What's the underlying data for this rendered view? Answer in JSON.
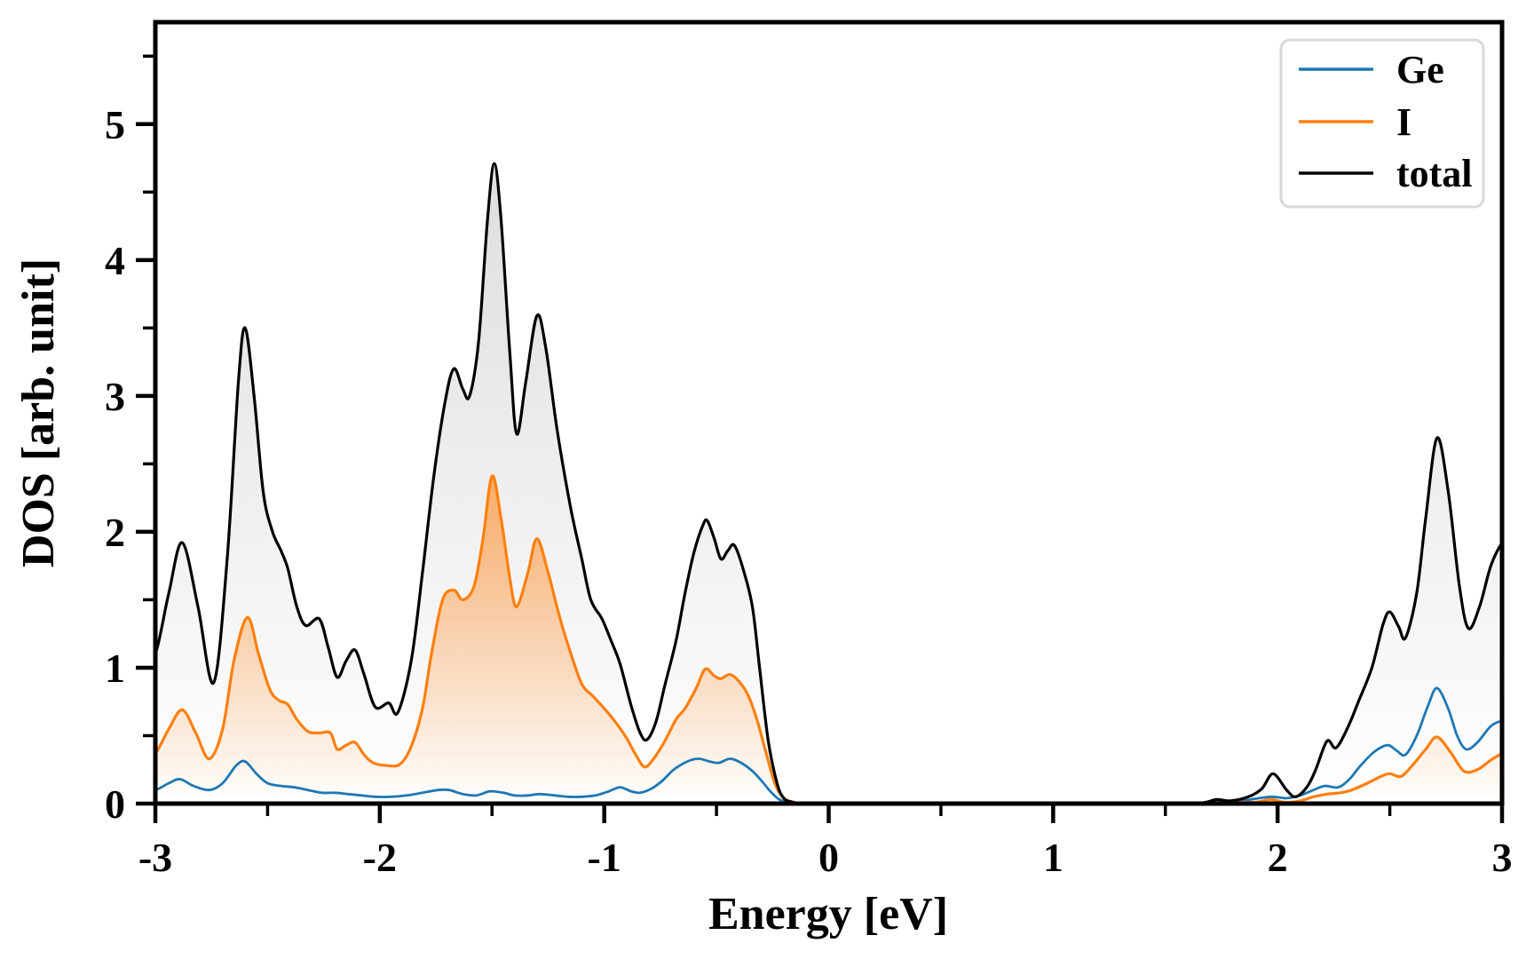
{
  "chart_data": {
    "type": "area",
    "title": "",
    "xlabel": "Energy [eV]",
    "ylabel": "DOS [arb. unit]",
    "xlim": [
      -3,
      3
    ],
    "ylim": [
      0,
      5.75
    ],
    "x_major_ticks": [
      -3,
      -2,
      -1,
      0,
      1,
      2,
      3
    ],
    "x_minor_ticks": [
      -2.5,
      -1.5,
      -0.5,
      0.5,
      1.5,
      2.5
    ],
    "y_major_ticks": [
      0,
      1,
      2,
      3,
      4,
      5
    ],
    "y_minor_ticks": [
      0.5,
      1.5,
      2.5,
      3.5,
      4.5,
      5.5
    ],
    "grid": false,
    "legend_position": "upper right",
    "colors": {
      "axis": "#000000",
      "legend_border": "#d9d9d9",
      "background": "#ffffff"
    },
    "series": [
      {
        "name": "Ge",
        "color": "#1f77b4",
        "line_width": 2.8,
        "fill": null,
        "points": [
          [
            -3.06,
            0.09
          ],
          [
            -3.0,
            0.1
          ],
          [
            -2.94,
            0.15
          ],
          [
            -2.89,
            0.18
          ],
          [
            -2.83,
            0.13
          ],
          [
            -2.76,
            0.1
          ],
          [
            -2.7,
            0.15
          ],
          [
            -2.64,
            0.28
          ],
          [
            -2.6,
            0.31
          ],
          [
            -2.55,
            0.22
          ],
          [
            -2.5,
            0.15
          ],
          [
            -2.44,
            0.13
          ],
          [
            -2.38,
            0.12
          ],
          [
            -2.32,
            0.1
          ],
          [
            -2.26,
            0.08
          ],
          [
            -2.2,
            0.08
          ],
          [
            -2.14,
            0.07
          ],
          [
            -2.08,
            0.06
          ],
          [
            -2.02,
            0.05
          ],
          [
            -1.95,
            0.05
          ],
          [
            -1.88,
            0.06
          ],
          [
            -1.81,
            0.08
          ],
          [
            -1.74,
            0.1
          ],
          [
            -1.69,
            0.1
          ],
          [
            -1.63,
            0.07
          ],
          [
            -1.57,
            0.06
          ],
          [
            -1.51,
            0.09
          ],
          [
            -1.45,
            0.08
          ],
          [
            -1.4,
            0.06
          ],
          [
            -1.34,
            0.06
          ],
          [
            -1.29,
            0.07
          ],
          [
            -1.22,
            0.06
          ],
          [
            -1.16,
            0.05
          ],
          [
            -1.1,
            0.05
          ],
          [
            -1.04,
            0.06
          ],
          [
            -0.98,
            0.09
          ],
          [
            -0.93,
            0.12
          ],
          [
            -0.88,
            0.09
          ],
          [
            -0.84,
            0.08
          ],
          [
            -0.79,
            0.11
          ],
          [
            -0.74,
            0.17
          ],
          [
            -0.69,
            0.25
          ],
          [
            -0.63,
            0.31
          ],
          [
            -0.58,
            0.33
          ],
          [
            -0.53,
            0.31
          ],
          [
            -0.49,
            0.3
          ],
          [
            -0.44,
            0.33
          ],
          [
            -0.39,
            0.3
          ],
          [
            -0.34,
            0.24
          ],
          [
            -0.3,
            0.17
          ],
          [
            -0.26,
            0.09
          ],
          [
            -0.22,
            0.03
          ],
          [
            -0.18,
            0.01
          ],
          [
            -0.12,
            0
          ],
          [
            0.3,
            0
          ],
          [
            0.9,
            0
          ],
          [
            1.5,
            0
          ],
          [
            1.62,
            0
          ],
          [
            1.7,
            0.01
          ],
          [
            1.8,
            0.01
          ],
          [
            1.88,
            0.03
          ],
          [
            1.97,
            0.05
          ],
          [
            2.04,
            0.04
          ],
          [
            2.1,
            0.06
          ],
          [
            2.16,
            0.1
          ],
          [
            2.21,
            0.13
          ],
          [
            2.27,
            0.12
          ],
          [
            2.32,
            0.18
          ],
          [
            2.37,
            0.28
          ],
          [
            2.43,
            0.38
          ],
          [
            2.49,
            0.43
          ],
          [
            2.53,
            0.39
          ],
          [
            2.57,
            0.36
          ],
          [
            2.62,
            0.5
          ],
          [
            2.67,
            0.72
          ],
          [
            2.71,
            0.85
          ],
          [
            2.76,
            0.7
          ],
          [
            2.8,
            0.5
          ],
          [
            2.84,
            0.4
          ],
          [
            2.89,
            0.45
          ],
          [
            2.95,
            0.57
          ],
          [
            3.0,
            0.61
          ],
          [
            3.06,
            0.64
          ]
        ]
      },
      {
        "name": "I",
        "color": "#ff7f0e",
        "line_width": 3.2,
        "fill": {
          "type": "vertical-gradient",
          "max_alpha": 0.6
        },
        "points": [
          [
            -3.06,
            0.32
          ],
          [
            -3.0,
            0.37
          ],
          [
            -2.94,
            0.55
          ],
          [
            -2.88,
            0.69
          ],
          [
            -2.82,
            0.52
          ],
          [
            -2.76,
            0.33
          ],
          [
            -2.7,
            0.55
          ],
          [
            -2.65,
            1.05
          ],
          [
            -2.59,
            1.37
          ],
          [
            -2.54,
            1.1
          ],
          [
            -2.49,
            0.84
          ],
          [
            -2.45,
            0.76
          ],
          [
            -2.41,
            0.73
          ],
          [
            -2.37,
            0.62
          ],
          [
            -2.32,
            0.53
          ],
          [
            -2.27,
            0.52
          ],
          [
            -2.22,
            0.52
          ],
          [
            -2.19,
            0.4
          ],
          [
            -2.15,
            0.43
          ],
          [
            -2.11,
            0.45
          ],
          [
            -2.07,
            0.36
          ],
          [
            -2.03,
            0.3
          ],
          [
            -1.97,
            0.28
          ],
          [
            -1.91,
            0.29
          ],
          [
            -1.86,
            0.42
          ],
          [
            -1.81,
            0.7
          ],
          [
            -1.77,
            1.1
          ],
          [
            -1.72,
            1.5
          ],
          [
            -1.67,
            1.57
          ],
          [
            -1.63,
            1.5
          ],
          [
            -1.58,
            1.6
          ],
          [
            -1.54,
            1.95
          ],
          [
            -1.5,
            2.41
          ],
          [
            -1.46,
            2.1
          ],
          [
            -1.42,
            1.65
          ],
          [
            -1.39,
            1.45
          ],
          [
            -1.34,
            1.7
          ],
          [
            -1.3,
            1.95
          ],
          [
            -1.25,
            1.7
          ],
          [
            -1.2,
            1.38
          ],
          [
            -1.15,
            1.11
          ],
          [
            -1.1,
            0.88
          ],
          [
            -1.05,
            0.79
          ],
          [
            -1.0,
            0.7
          ],
          [
            -0.95,
            0.6
          ],
          [
            -0.9,
            0.48
          ],
          [
            -0.86,
            0.36
          ],
          [
            -0.82,
            0.27
          ],
          [
            -0.78,
            0.33
          ],
          [
            -0.73,
            0.46
          ],
          [
            -0.68,
            0.62
          ],
          [
            -0.64,
            0.7
          ],
          [
            -0.59,
            0.85
          ],
          [
            -0.55,
            0.99
          ],
          [
            -0.51,
            0.94
          ],
          [
            -0.48,
            0.92
          ],
          [
            -0.44,
            0.95
          ],
          [
            -0.4,
            0.9
          ],
          [
            -0.36,
            0.8
          ],
          [
            -0.32,
            0.62
          ],
          [
            -0.28,
            0.38
          ],
          [
            -0.24,
            0.15
          ],
          [
            -0.2,
            0.04
          ],
          [
            -0.15,
            0.01
          ],
          [
            -0.09,
            0
          ],
          [
            0.3,
            0
          ],
          [
            0.9,
            0
          ],
          [
            1.5,
            0
          ],
          [
            1.72,
            0
          ],
          [
            1.8,
            0.01
          ],
          [
            1.9,
            0.01
          ],
          [
            1.97,
            0.03
          ],
          [
            2.03,
            0.01
          ],
          [
            2.1,
            0.02
          ],
          [
            2.16,
            0.05
          ],
          [
            2.22,
            0.07
          ],
          [
            2.28,
            0.08
          ],
          [
            2.33,
            0.1
          ],
          [
            2.4,
            0.15
          ],
          [
            2.46,
            0.2
          ],
          [
            2.5,
            0.22
          ],
          [
            2.55,
            0.2
          ],
          [
            2.6,
            0.28
          ],
          [
            2.66,
            0.4
          ],
          [
            2.71,
            0.49
          ],
          [
            2.77,
            0.38
          ],
          [
            2.83,
            0.24
          ],
          [
            2.89,
            0.25
          ],
          [
            2.95,
            0.32
          ],
          [
            3.0,
            0.37
          ],
          [
            3.06,
            0.41
          ]
        ]
      },
      {
        "name": "total",
        "color": "#000000",
        "line_width": 3.2,
        "fill": {
          "type": "vertical-gradient",
          "max_alpha": 0.13
        },
        "points": [
          [
            -3.06,
            1.0
          ],
          [
            -3.0,
            1.1
          ],
          [
            -2.94,
            1.55
          ],
          [
            -2.88,
            1.92
          ],
          [
            -2.81,
            1.45
          ],
          [
            -2.74,
            0.89
          ],
          [
            -2.68,
            1.8
          ],
          [
            -2.63,
            3.1
          ],
          [
            -2.6,
            3.5
          ],
          [
            -2.56,
            3.0
          ],
          [
            -2.52,
            2.3
          ],
          [
            -2.48,
            2.01
          ],
          [
            -2.44,
            1.86
          ],
          [
            -2.41,
            1.73
          ],
          [
            -2.37,
            1.45
          ],
          [
            -2.33,
            1.31
          ],
          [
            -2.27,
            1.36
          ],
          [
            -2.23,
            1.15
          ],
          [
            -2.19,
            0.93
          ],
          [
            -2.15,
            1.05
          ],
          [
            -2.11,
            1.13
          ],
          [
            -2.07,
            0.95
          ],
          [
            -2.02,
            0.71
          ],
          [
            -1.96,
            0.74
          ],
          [
            -1.92,
            0.67
          ],
          [
            -1.86,
            1.05
          ],
          [
            -1.81,
            1.7
          ],
          [
            -1.76,
            2.4
          ],
          [
            -1.71,
            2.95
          ],
          [
            -1.67,
            3.2
          ],
          [
            -1.63,
            3.05
          ],
          [
            -1.6,
            3.0
          ],
          [
            -1.56,
            3.4
          ],
          [
            -1.52,
            4.3
          ],
          [
            -1.49,
            4.71
          ],
          [
            -1.46,
            4.3
          ],
          [
            -1.42,
            3.3
          ],
          [
            -1.39,
            2.72
          ],
          [
            -1.35,
            3.1
          ],
          [
            -1.3,
            3.59
          ],
          [
            -1.26,
            3.35
          ],
          [
            -1.21,
            2.75
          ],
          [
            -1.15,
            2.18
          ],
          [
            -1.1,
            1.8
          ],
          [
            -1.06,
            1.5
          ],
          [
            -1.01,
            1.36
          ],
          [
            -0.97,
            1.2
          ],
          [
            -0.93,
            1.03
          ],
          [
            -0.88,
            0.72
          ],
          [
            -0.84,
            0.52
          ],
          [
            -0.81,
            0.47
          ],
          [
            -0.77,
            0.6
          ],
          [
            -0.73,
            0.87
          ],
          [
            -0.68,
            1.2
          ],
          [
            -0.64,
            1.55
          ],
          [
            -0.6,
            1.85
          ],
          [
            -0.56,
            2.05
          ],
          [
            -0.54,
            2.08
          ],
          [
            -0.51,
            1.95
          ],
          [
            -0.48,
            1.8
          ],
          [
            -0.45,
            1.86
          ],
          [
            -0.42,
            1.9
          ],
          [
            -0.38,
            1.72
          ],
          [
            -0.34,
            1.45
          ],
          [
            -0.31,
            1.03
          ],
          [
            -0.27,
            0.47
          ],
          [
            -0.23,
            0.15
          ],
          [
            -0.2,
            0.04
          ],
          [
            -0.16,
            0.01
          ],
          [
            -0.1,
            0
          ],
          [
            0.3,
            0
          ],
          [
            0.9,
            0
          ],
          [
            1.45,
            0
          ],
          [
            1.62,
            0
          ],
          [
            1.68,
            0.01
          ],
          [
            1.73,
            0.03
          ],
          [
            1.79,
            0.02
          ],
          [
            1.87,
            0.05
          ],
          [
            1.93,
            0.11
          ],
          [
            1.98,
            0.22
          ],
          [
            2.04,
            0.1
          ],
          [
            2.08,
            0.05
          ],
          [
            2.13,
            0.12
          ],
          [
            2.17,
            0.25
          ],
          [
            2.22,
            0.46
          ],
          [
            2.26,
            0.41
          ],
          [
            2.31,
            0.55
          ],
          [
            2.36,
            0.75
          ],
          [
            2.42,
            1.0
          ],
          [
            2.47,
            1.32
          ],
          [
            2.5,
            1.41
          ],
          [
            2.54,
            1.3
          ],
          [
            2.57,
            1.22
          ],
          [
            2.62,
            1.55
          ],
          [
            2.66,
            2.1
          ],
          [
            2.71,
            2.69
          ],
          [
            2.76,
            2.3
          ],
          [
            2.81,
            1.6
          ],
          [
            2.85,
            1.29
          ],
          [
            2.9,
            1.45
          ],
          [
            2.95,
            1.75
          ],
          [
            3.0,
            1.92
          ],
          [
            3.06,
            2.05
          ]
        ]
      }
    ]
  }
}
